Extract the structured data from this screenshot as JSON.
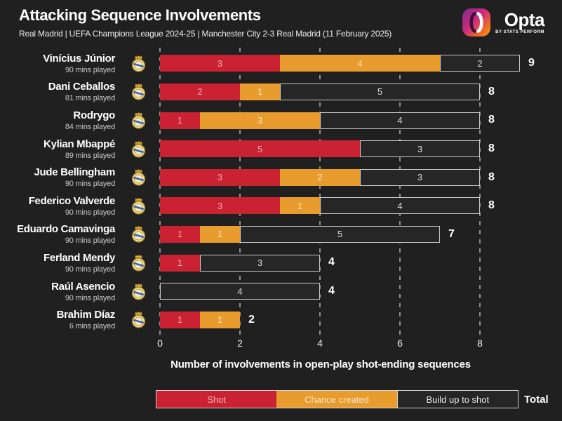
{
  "header": {
    "title": "Attacking Sequence Involvements",
    "subtitle": "Real Madrid | UEFA Champions League 2024-25 | Manchester City 2-3 Real Madrid (11 February 2025)",
    "logo": {
      "brand": "Opta",
      "tagline": "by STATS PERFORM"
    }
  },
  "chart_data": {
    "type": "bar",
    "orientation": "horizontal-stacked",
    "title": "Attacking Sequence Involvements",
    "xlabel": "Number of involvements in open-play shot-ending sequences",
    "xlim": [
      0,
      8
    ],
    "ticks": [
      "0",
      "2",
      "4",
      "6",
      "8"
    ],
    "grid": "dashed-vertical",
    "categories": [
      "Vinícius Júnior",
      "Dani Ceballos",
      "Rodrygo",
      "Kylian Mbappé",
      "Jude Bellingham",
      "Federico Valverde",
      "Eduardo Camavinga",
      "Ferland Mendy",
      "Raúl Asencio",
      "Brahim Díaz"
    ],
    "category_sublabels": [
      "90 mins played",
      "81 mins played",
      "84 mins played",
      "89 mins played",
      "90 mins played",
      "90 mins played",
      "90 mins played",
      "90 mins played",
      "90 mins played",
      "6 mins played"
    ],
    "series": [
      {
        "name": "Shot",
        "color": "#CB2233",
        "values": [
          3,
          2,
          1,
          5,
          3,
          3,
          1,
          1,
          0,
          1
        ]
      },
      {
        "name": "Chance created",
        "color": "#E89C2E",
        "values": [
          4,
          1,
          3,
          0,
          2,
          1,
          1,
          0,
          0,
          1
        ]
      },
      {
        "name": "Build up to shot",
        "color": "#262626",
        "values": [
          2,
          5,
          4,
          3,
          3,
          4,
          5,
          3,
          4,
          0
        ]
      }
    ],
    "totals": [
      9,
      8,
      8,
      8,
      8,
      8,
      7,
      4,
      4,
      2
    ],
    "legend": {
      "position": "bottom",
      "entries": [
        "Shot",
        "Chance created",
        "Build up to shot"
      ],
      "total_label": "Total"
    }
  },
  "colors": {
    "background": "#202020",
    "shot": "#CB2233",
    "chance_created": "#E89C2E",
    "build_up_border": "#c9c9c9",
    "gridline": "#8d8d8d"
  }
}
